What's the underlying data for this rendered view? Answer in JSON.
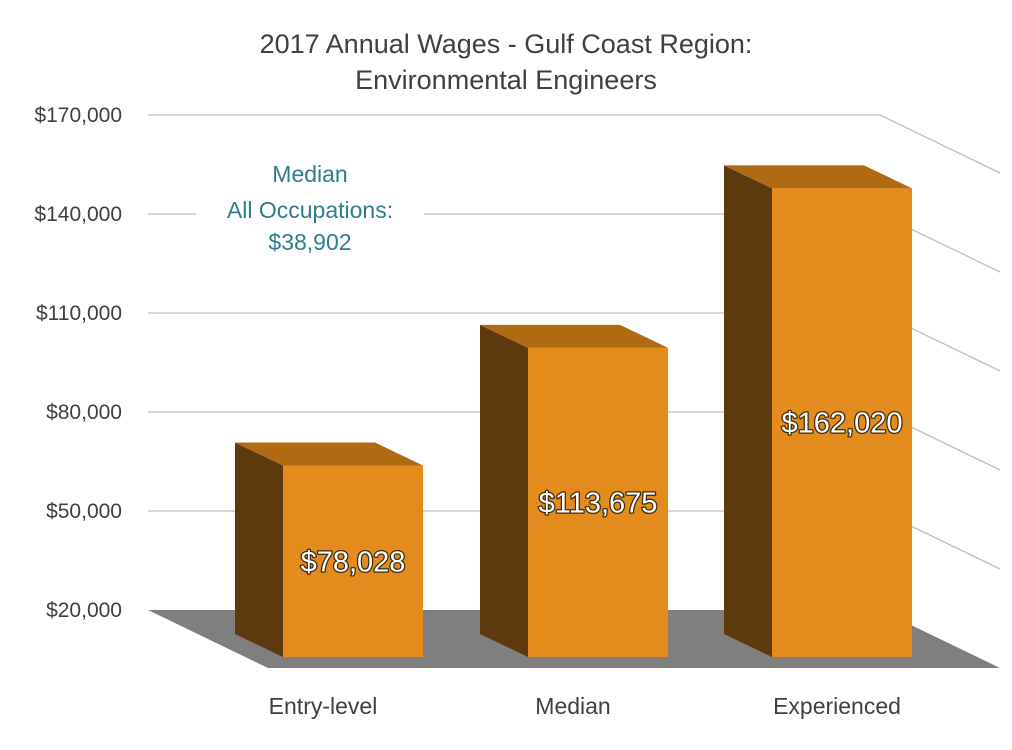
{
  "chart_data": {
    "type": "bar",
    "title_lines": [
      "2017 Annual Wages - Gulf Coast Region:",
      "Environmental Engineers"
    ],
    "categories": [
      "Entry-level",
      "Median",
      "Experienced"
    ],
    "values": [
      78028,
      113675,
      162020
    ],
    "value_labels": [
      "$78,028",
      "$113,675",
      "$162,020"
    ],
    "ylim": [
      20000,
      170000
    ],
    "yticks": [
      20000,
      50000,
      80000,
      110000,
      140000,
      170000
    ],
    "ytick_labels": [
      "$20,000",
      "$50,000",
      "$80,000",
      "$110,000",
      "$140,000",
      "$170,000"
    ],
    "annotation_lines": [
      "Median",
      "All Occupations:",
      "$38,902"
    ],
    "grid": true,
    "style": "3d-columns",
    "colors": {
      "bar_front": "#e38b1c",
      "bar_top": "#b06a12",
      "bar_side": "#5c3a0e",
      "floor": "#7f7f7f",
      "grid": "#bfbfbf",
      "annotation": "#2e7d8f",
      "text": "#404040"
    }
  }
}
